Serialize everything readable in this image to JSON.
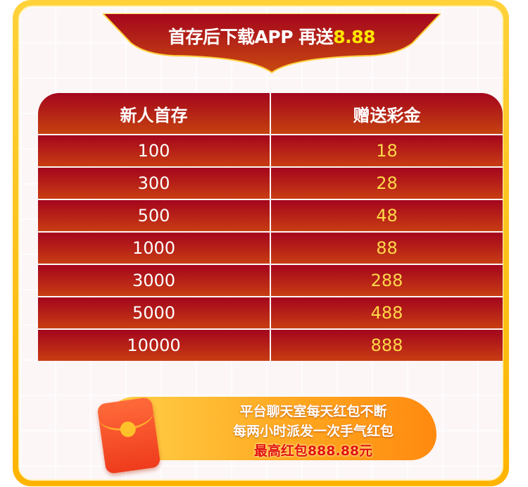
{
  "banner": {
    "title": "首存后下载APP 再送",
    "amount": "8.88"
  },
  "table": {
    "headers": [
      "新人首存",
      "赠送彩金"
    ],
    "rows": [
      [
        "100",
        "18"
      ],
      [
        "300",
        "28"
      ],
      [
        "500",
        "48"
      ],
      [
        "1000",
        "88"
      ],
      [
        "3000",
        "288"
      ],
      [
        "5000",
        "488"
      ],
      [
        "10000",
        "888"
      ]
    ]
  },
  "promo": {
    "line1": "平台聊天室每天红包不断",
    "line2": "每两小时派发一次手气红包",
    "line3": "最高红包888.88元",
    "icon": "red-envelope-icon"
  },
  "colors": {
    "frame": "#ffc21a",
    "header": "#a4051d",
    "bonus_text": "#ffd84a",
    "accent": "#ffe600"
  }
}
